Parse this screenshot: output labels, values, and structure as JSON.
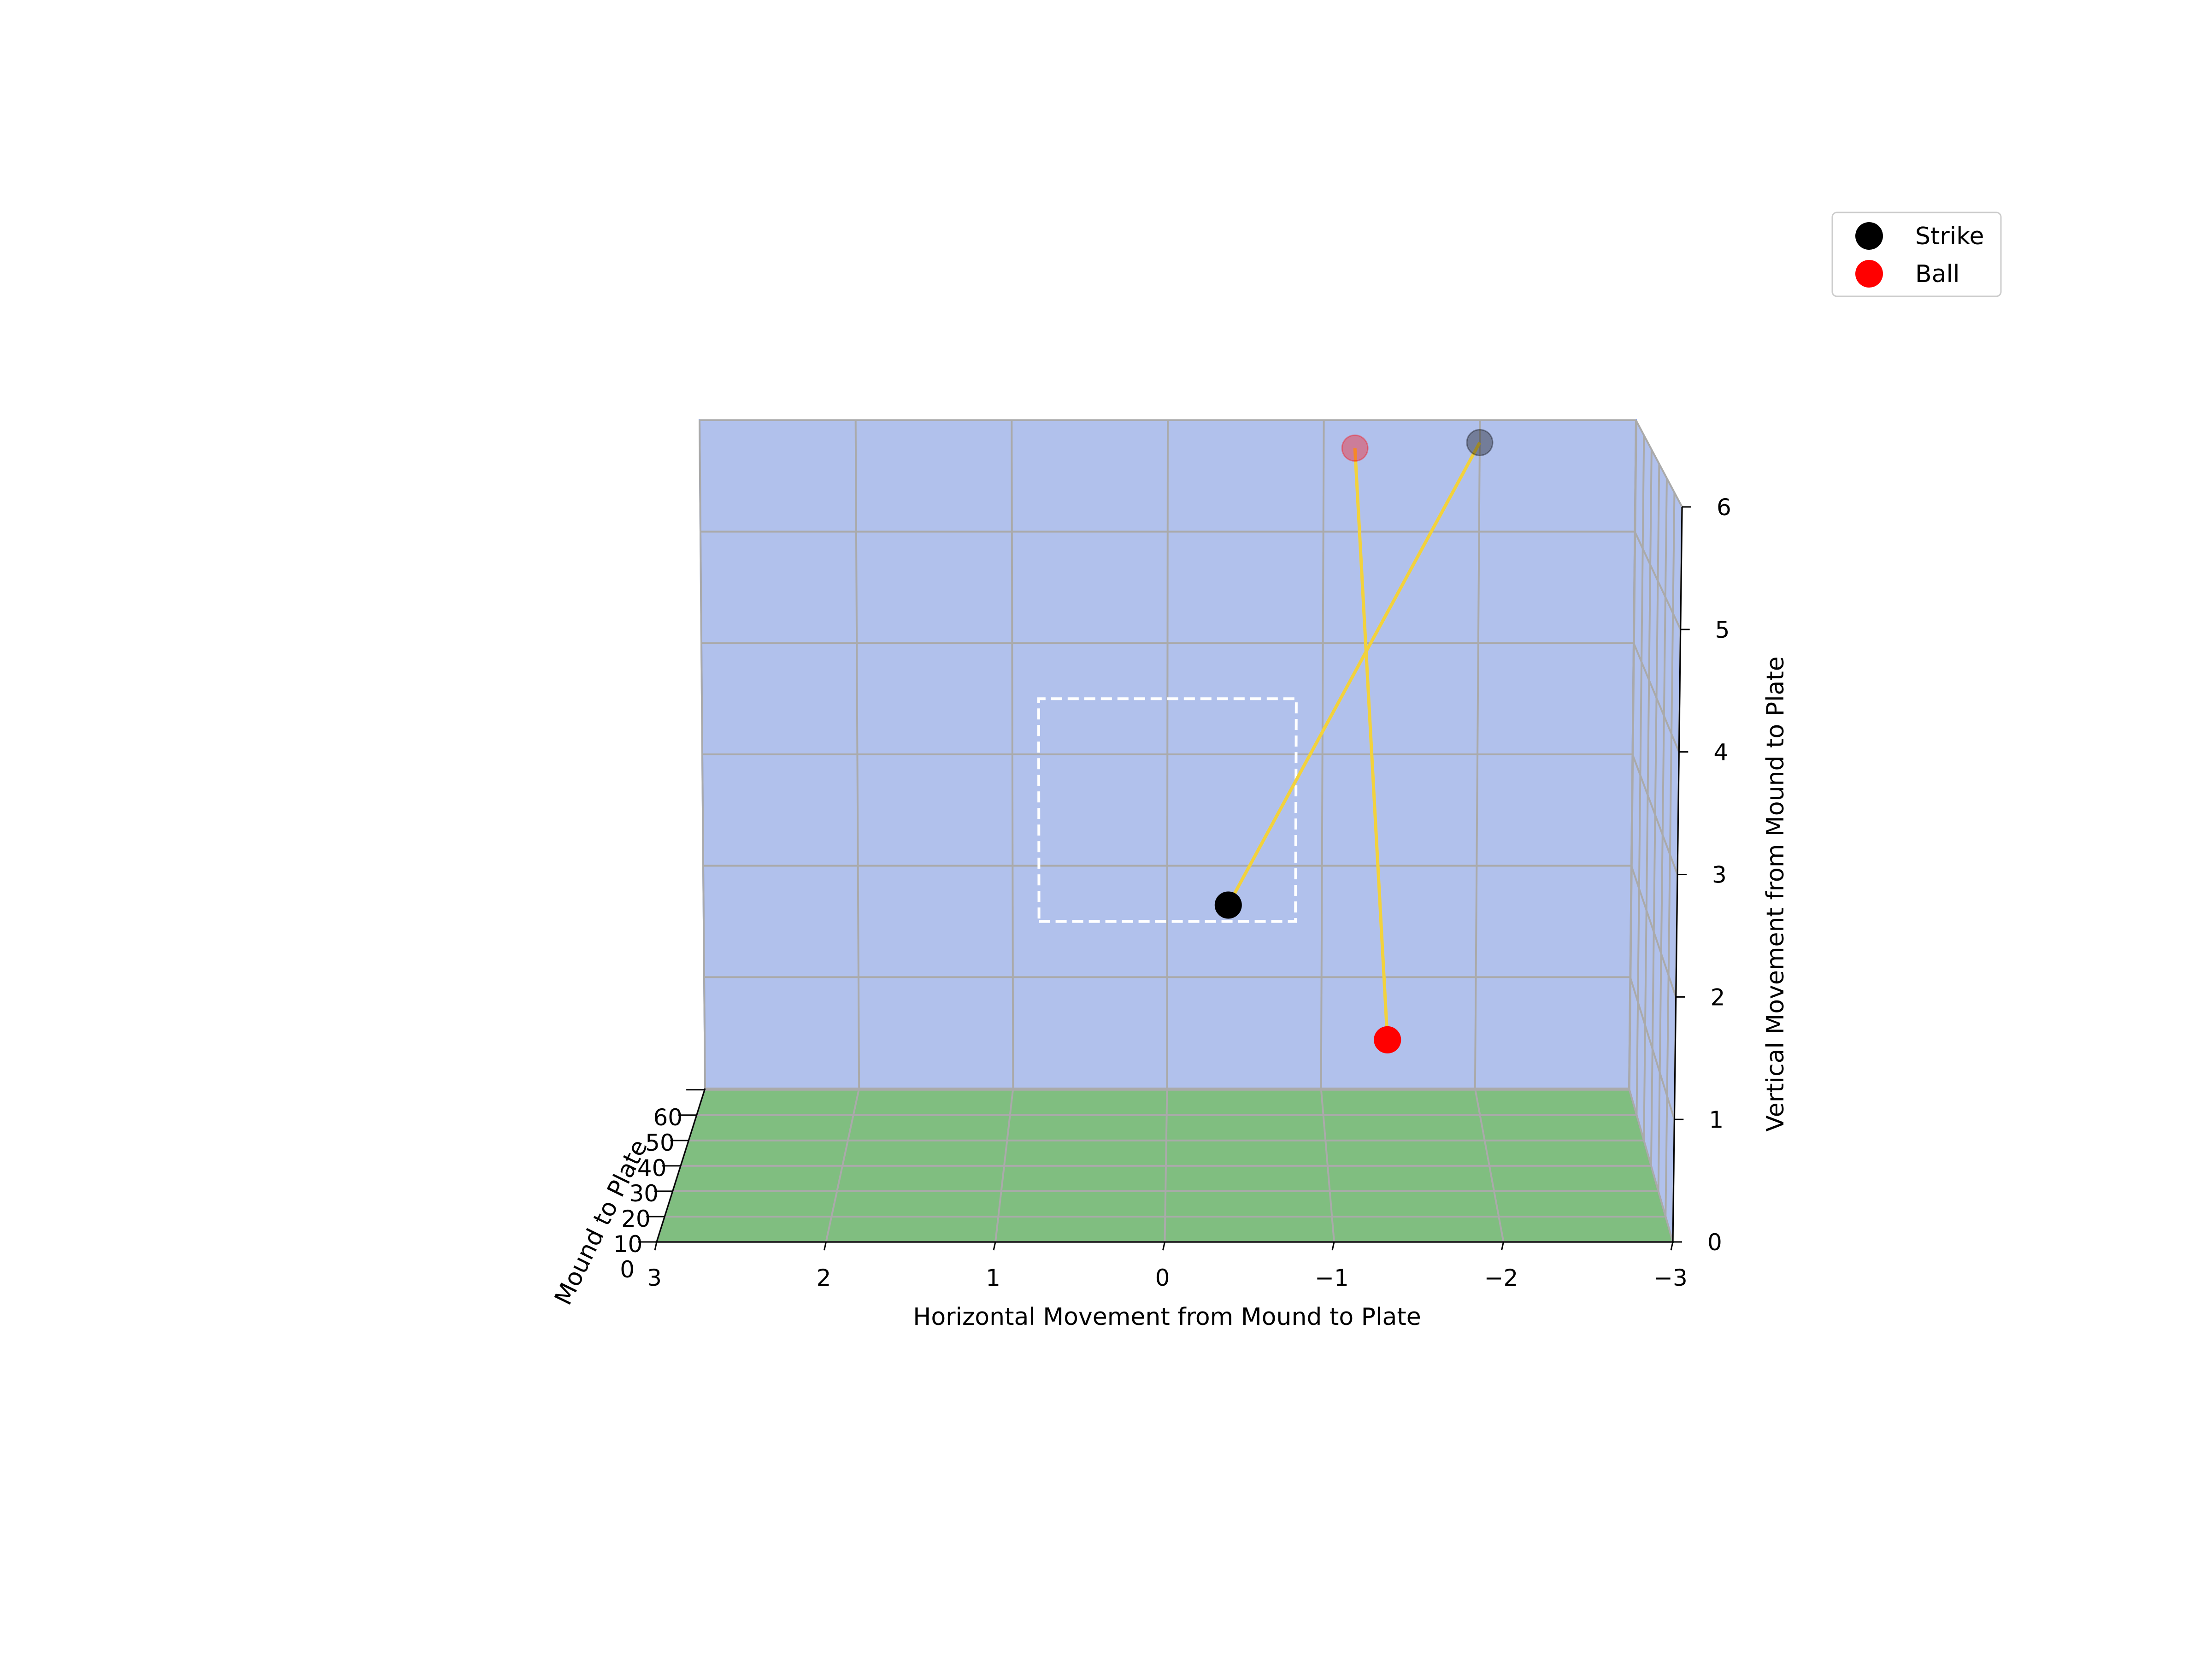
{
  "chart_data": {
    "type": "scatter",
    "projection": "3d",
    "xlabel": "Horizontal Movement from Mound to Plate",
    "ylabel": "Mound to Plate",
    "zlabel": "Vertical Movement from Mound to Plate",
    "xlim": [
      3,
      -3
    ],
    "ylim": [
      0,
      60.5
    ],
    "zlim": [
      0,
      6
    ],
    "x_ticks": [
      "3",
      "2",
      "1",
      "0",
      "−1",
      "−2",
      "−3"
    ],
    "y_ticks": [
      "0",
      "10",
      "20",
      "30",
      "40",
      "50",
      "60"
    ],
    "z_ticks": [
      "0",
      "1",
      "2",
      "3",
      "4",
      "5",
      "6"
    ],
    "grid": true,
    "legend_position": "top-right",
    "colors": {
      "wall": "#b1c1ec",
      "wall_edge": "#7f98e2",
      "floor": "#80be80",
      "floor_edge": "#2e8b57",
      "trajectory": "#f2d23c",
      "strike": "#000000",
      "ball": "#ff0000",
      "strike_zone": "#ffffff"
    },
    "strike_zone": {
      "x": [
        -0.83,
        0.83
      ],
      "z": [
        1.5,
        3.5
      ]
    },
    "series": [
      {
        "name": "Strike",
        "color": "#000000",
        "release": {
          "x": -2.0,
          "y": 60.5,
          "z": 5.8
        },
        "plate": {
          "x": -0.35,
          "y": 0,
          "z": 2.75
        }
      },
      {
        "name": "Ball",
        "color": "#ff0000",
        "release": {
          "x": -1.2,
          "y": 60.5,
          "z": 5.75
        },
        "plate": {
          "x": -1.3,
          "y": 0,
          "z": 1.65
        }
      }
    ]
  }
}
